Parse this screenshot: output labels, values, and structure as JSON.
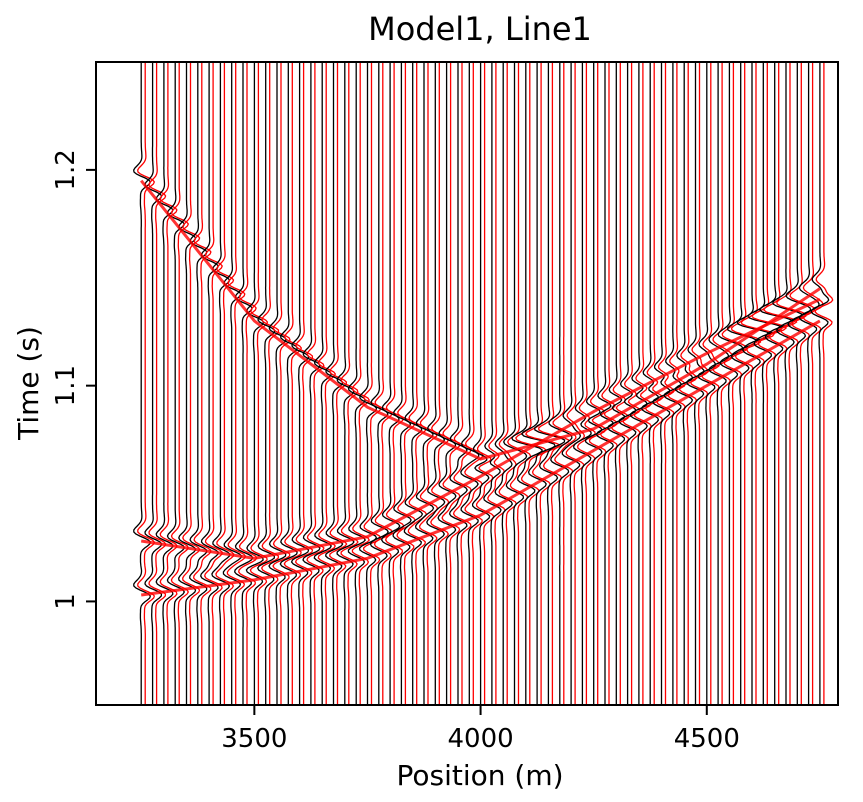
{
  "chart_data": {
    "type": "wiggle",
    "title": "Model1, Line1",
    "x_label": "Position (m)",
    "y_label": "Time (s)",
    "xlim": [
      3150,
      4790
    ],
    "ylim": [
      0.952,
      1.25
    ],
    "xticks": [
      3500,
      4000,
      4500
    ],
    "yticks": [
      1,
      1.1,
      1.2
    ],
    "traces": {
      "color": "#000000",
      "shadow_color": "#ff0000",
      "x": [
        3250,
        3275,
        3300,
        3325,
        3350,
        3375,
        3400,
        3425,
        3450,
        3475,
        3500,
        3525,
        3550,
        3575,
        3600,
        3625,
        3650,
        3675,
        3700,
        3725,
        3750,
        3775,
        3800,
        3825,
        3850,
        3875,
        3900,
        3925,
        3950,
        3975,
        4000,
        4025,
        4050,
        4075,
        4100,
        4125,
        4150,
        4175,
        4200,
        4225,
        4250,
        4275,
        4300,
        4325,
        4350,
        4375,
        4400,
        4425,
        4450,
        4475,
        4500,
        4525,
        4550,
        4575,
        4600,
        4625,
        4650,
        4675,
        4700,
        4725,
        4750
      ]
    },
    "series": [
      {
        "color": "#ff0000",
        "x": [
          3250,
          3500,
          3750,
          4000,
          4250,
          4500,
          4750
        ],
        "values": [
          1.195,
          1.13,
          1.09,
          1.066,
          1.08,
          1.11,
          1.145
        ]
      },
      {
        "color": "#ff0000",
        "x": [
          3250,
          3500,
          3750,
          4000,
          4250,
          4500,
          4750
        ],
        "values": [
          1.003,
          1.01,
          1.02,
          1.04,
          1.07,
          1.1,
          1.13
        ]
      },
      {
        "color": "#ff0000",
        "x": [
          3250,
          3500,
          3750,
          4000,
          4250,
          4500,
          4750
        ],
        "values": [
          1.028,
          1.02,
          1.03,
          1.058,
          1.088,
          1.115,
          1.14
        ]
      }
    ]
  }
}
